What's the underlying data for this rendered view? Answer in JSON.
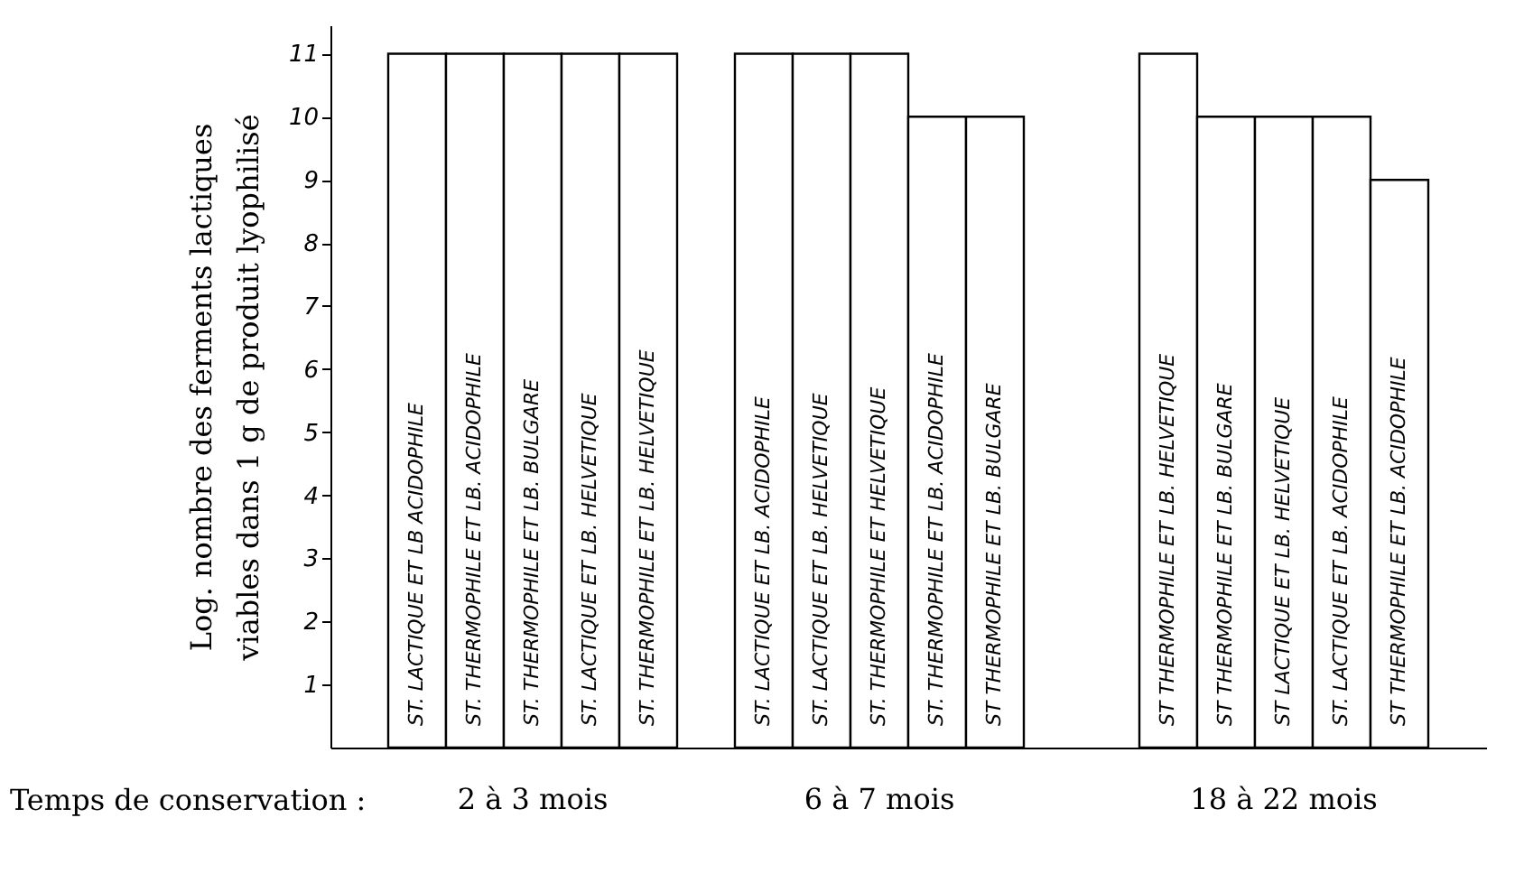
{
  "chart_data": {
    "type": "bar",
    "ylabel": "Log. nombre des ferments lactiques\nviables dans 1 g de produit lyophilisé",
    "xlabel": "Temps de conservation :",
    "annotations": [
      "2 à 3 mois",
      "6 à 7 mois",
      "18 à 22 mois"
    ],
    "categories": [
      "ST. LACTIQUE ET LB ACIDOPHILE",
      "ST. THERMOPHILE ET LB. ACIDOPHILE",
      "ST. THERMOPHILE ET LB. BULGARE",
      "ST. LACTIQUE ET LB. HELVETIQUE",
      "ST. THERMOPHILE ET LB. HELVETIQUE",
      null,
      "ST. LACTIQUE ET LB. ACIDOPHILE",
      "ST. LACTIQUE ET LB. HELVETIQUE",
      "ST. THERMOPHILE ET HELVETIQUE",
      "ST. THERMOPHILE ET LB. ACIDOPHILE",
      "ST THERMOPHILE ET LB. BULGARE",
      null,
      null,
      "ST THERMOPHILE ET LB. HELVETIQUE",
      "ST THERMOPHILE ET LB. BULGARE",
      "ST LACTIQUE ET LB. HELVETIQUE",
      "ST. LACTIQUE ET LB. ACIDOPHILE",
      "ST THERMOPHILE ET LB. ACIDOPHILE"
    ],
    "values": [
      11,
      11,
      11,
      11,
      11,
      null,
      11,
      11,
      11,
      10,
      10,
      null,
      null,
      11,
      10,
      10,
      10,
      9
    ],
    "color": "#ffffff",
    "ylim": [
      0,
      11.45
    ],
    "yticks": [
      1,
      2,
      3,
      4,
      5,
      6,
      7,
      8,
      9,
      10,
      11
    ]
  }
}
